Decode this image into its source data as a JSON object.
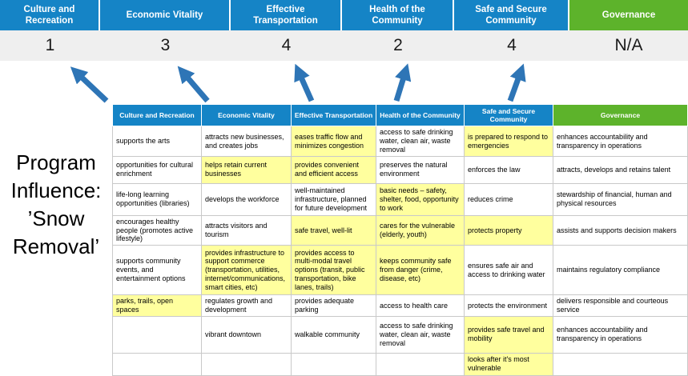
{
  "program_label": "Program Influence: ’Snow Removal’",
  "colors": {
    "blue": "#1584c6",
    "green": "#5db32b",
    "highlight": "#ffff9e",
    "score_band": "#efefef",
    "arrow": "#2e75b6"
  },
  "banner": {
    "columns": [
      {
        "label": "Culture and Recreation",
        "score": "1",
        "theme": "blue"
      },
      {
        "label": "Economic Vitality",
        "score": "3",
        "theme": "blue"
      },
      {
        "label": "Effective Transportation",
        "score": "4",
        "theme": "blue"
      },
      {
        "label": "Health of the Community",
        "score": "2",
        "theme": "blue"
      },
      {
        "label": "Safe and Secure Community",
        "score": "4",
        "theme": "blue"
      },
      {
        "label": "Governance",
        "score": "N/A",
        "theme": "green"
      }
    ]
  },
  "matrix": {
    "headers": [
      {
        "label": "Culture and Recreation",
        "theme": "blue"
      },
      {
        "label": "Economic Vitality",
        "theme": "blue"
      },
      {
        "label": "Effective Transportation",
        "theme": "blue"
      },
      {
        "label": "Health of the Community",
        "theme": "blue"
      },
      {
        "label": "Safe and Secure Community",
        "theme": "blue"
      },
      {
        "label": "Governance",
        "theme": "green"
      }
    ],
    "rows": [
      [
        {
          "text": "supports the arts",
          "highlight": false
        },
        {
          "text": "attracts new businesses, and creates jobs",
          "highlight": false
        },
        {
          "text": "eases traffic flow and minimizes congestion",
          "highlight": true
        },
        {
          "text": "access to safe drinking water, clean air, waste removal",
          "highlight": false
        },
        {
          "text": "is prepared to respond to emergencies",
          "highlight": true
        },
        {
          "text": "enhances accountability and transparency in operations",
          "highlight": false
        }
      ],
      [
        {
          "text": "opportunities for cultural enrichment",
          "highlight": false
        },
        {
          "text": "helps retain current businesses",
          "highlight": true
        },
        {
          "text": "provides convenient and efficient access",
          "highlight": true
        },
        {
          "text": "preserves the natural environment",
          "highlight": false
        },
        {
          "text": "enforces the law",
          "highlight": false
        },
        {
          "text": "attracts, develops and retains talent",
          "highlight": false
        }
      ],
      [
        {
          "text": "life-long learning opportunities (libraries)",
          "highlight": false
        },
        {
          "text": "develops the workforce",
          "highlight": false
        },
        {
          "text": "well-maintained infrastructure, planned for future development",
          "highlight": false
        },
        {
          "text": "basic needs – safety, shelter, food, opportunity to work",
          "highlight": true
        },
        {
          "text": "reduces crime",
          "highlight": false
        },
        {
          "text": "stewardship of financial, human and physical resources",
          "highlight": false
        }
      ],
      [
        {
          "text": "encourages healthy people (promotes active lifestyle)",
          "highlight": false
        },
        {
          "text": "attracts visitors and tourism",
          "highlight": false
        },
        {
          "text": "safe travel, well-lit",
          "highlight": true
        },
        {
          "text": "cares for the vulnerable (elderly, youth)",
          "highlight": true
        },
        {
          "text": "protects property",
          "highlight": true
        },
        {
          "text": "assists and supports decision makers",
          "highlight": false
        }
      ],
      [
        {
          "text": "supports community events, and entertainment options",
          "highlight": false
        },
        {
          "text": "provides infrastructure to support commerce (transportation, utilities, internet/communications, smart cities, etc)",
          "highlight": true
        },
        {
          "text": "provides access to multi-modal travel options (transit, public transportation, bike lanes, trails)",
          "highlight": true
        },
        {
          "text": "keeps community safe from danger (crime, disease, etc)",
          "highlight": true
        },
        {
          "text": "ensures safe air and access to drinking water",
          "highlight": false
        },
        {
          "text": "maintains regulatory compliance",
          "highlight": false
        }
      ],
      [
        {
          "text": "parks, trails, open spaces",
          "highlight": true
        },
        {
          "text": "regulates growth and development",
          "highlight": false
        },
        {
          "text": "provides adequate parking",
          "highlight": false
        },
        {
          "text": "access to health care",
          "highlight": false
        },
        {
          "text": "protects the environment",
          "highlight": false
        },
        {
          "text": "delivers responsible and courteous service",
          "highlight": false
        }
      ],
      [
        {
          "text": "",
          "highlight": false
        },
        {
          "text": "vibrant downtown",
          "highlight": false
        },
        {
          "text": "walkable community",
          "highlight": false
        },
        {
          "text": "access to safe drinking water, clean air, waste removal",
          "highlight": false
        },
        {
          "text": "provides safe travel and mobility",
          "highlight": true
        },
        {
          "text": "enhances accountability and transparency in operations",
          "highlight": false
        }
      ],
      [
        {
          "text": "",
          "highlight": false
        },
        {
          "text": "",
          "highlight": false
        },
        {
          "text": "",
          "highlight": false
        },
        {
          "text": "",
          "highlight": false
        },
        {
          "text": "looks after it's most vulnerable",
          "highlight": true
        },
        {
          "text": "",
          "highlight": false
        }
      ]
    ]
  }
}
